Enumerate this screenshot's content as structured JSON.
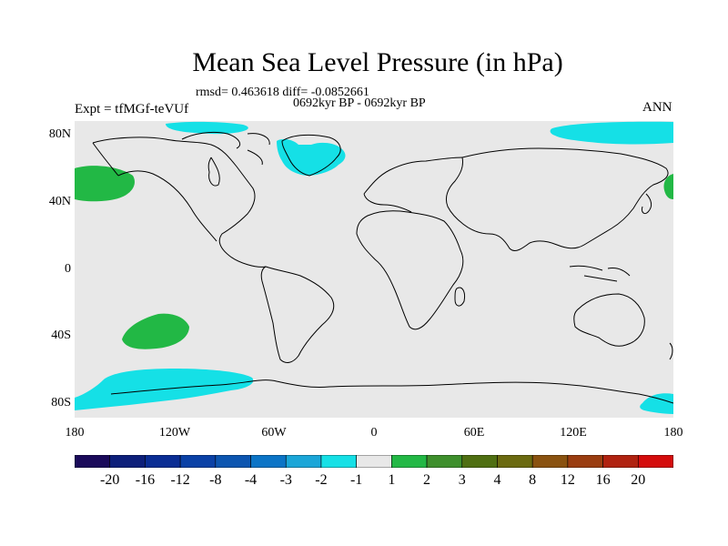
{
  "map": {
    "title": "Mean Sea Level Pressure (in hPa)",
    "stats": "rmsd= 0.463618 diff= -0.0852661",
    "period": "0692kyr BP - 0692kyr BP",
    "experiment": "Expt = tfMGf-teVUf",
    "season": "ANN",
    "lat_labels": [
      "80N",
      "40N",
      "0",
      "40S",
      "80S"
    ],
    "lon_labels": [
      "180",
      "120W",
      "60W",
      "0",
      "60E",
      "120E",
      "180"
    ],
    "land_color": "#e8e8e8",
    "coast_color": "#000000"
  },
  "colorbar": {
    "colors": [
      "#1a0a5a",
      "#0d1f7a",
      "#0a2d94",
      "#0a41a6",
      "#0c55b0",
      "#0b74c6",
      "#1aa6d8",
      "#15e0e6",
      "#e8e8e8",
      "#22b845",
      "#3e8f2c",
      "#4f6f12",
      "#6b6a10",
      "#8a5210",
      "#9a3d10",
      "#b02210",
      "#d40c0c"
    ],
    "labels": [
      "-20",
      "-16",
      "-12",
      "-8",
      "-4",
      "-3",
      "-2",
      "-1",
      "1",
      "2",
      "3",
      "4",
      "8",
      "12",
      "16",
      "20"
    ]
  },
  "anomaly_regions": [
    {
      "name": "Arctic Alaska",
      "color": "#15e0e6"
    },
    {
      "name": "Greenland",
      "color": "#15e0e6"
    },
    {
      "name": "Arctic Siberia",
      "color": "#15e0e6"
    },
    {
      "name": "North Pacific West",
      "color": "#22b845"
    },
    {
      "name": "North Pacific East",
      "color": "#22b845"
    },
    {
      "name": "South Pacific",
      "color": "#22b845"
    },
    {
      "name": "Southern Ocean Pacific",
      "color": "#15e0e6"
    },
    {
      "name": "Southern Ocean Australia",
      "color": "#15e0e6"
    }
  ]
}
